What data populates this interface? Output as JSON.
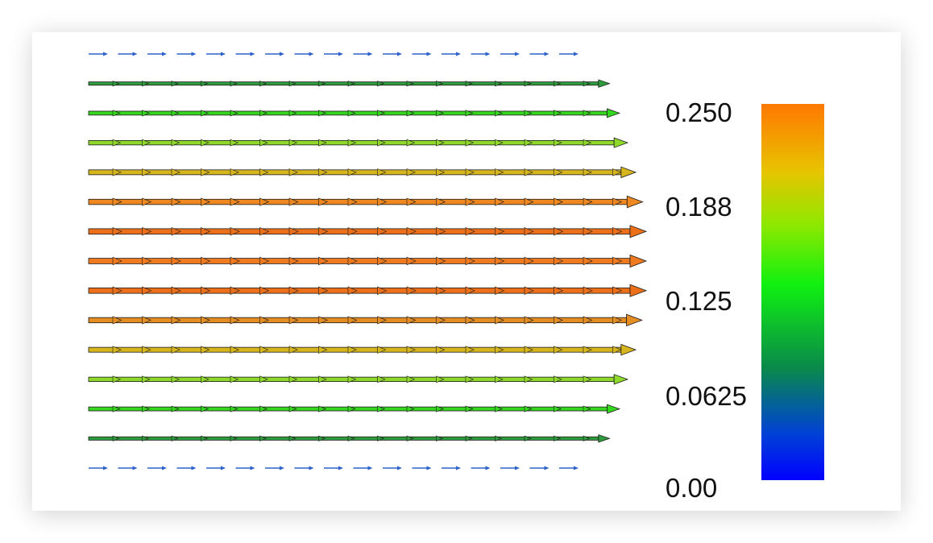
{
  "chart_data": {
    "type": "vector-field",
    "colorbar": {
      "labels": [
        "0.250",
        "0.188",
        "0.125",
        "0.0625",
        "0.00"
      ],
      "min": 0.0,
      "max": 0.25,
      "colors": [
        "#0000ff",
        "#00ff00",
        "#ff7a00"
      ]
    },
    "rows": [
      {
        "magnitude": 0.0,
        "color": "#2c62c9"
      },
      {
        "magnitude": 0.092,
        "color": "#2e9c3c"
      },
      {
        "magnitude": 0.135,
        "color": "#35d61e"
      },
      {
        "magnitude": 0.17,
        "color": "#8fd92a"
      },
      {
        "magnitude": 0.205,
        "color": "#d6b51d"
      },
      {
        "magnitude": 0.235,
        "color": "#ef8820"
      },
      {
        "magnitude": 0.25,
        "color": "#ec701a"
      },
      {
        "magnitude": 0.25,
        "color": "#ef7a1f"
      },
      {
        "magnitude": 0.25,
        "color": "#ec701a"
      },
      {
        "magnitude": 0.232,
        "color": "#e48d23"
      },
      {
        "magnitude": 0.205,
        "color": "#d6b51d"
      },
      {
        "magnitude": 0.17,
        "color": "#8fd92a"
      },
      {
        "magnitude": 0.135,
        "color": "#35d61e"
      },
      {
        "magnitude": 0.092,
        "color": "#2e9c3c"
      },
      {
        "magnitude": 0.0,
        "color": "#2c62c9"
      }
    ]
  }
}
